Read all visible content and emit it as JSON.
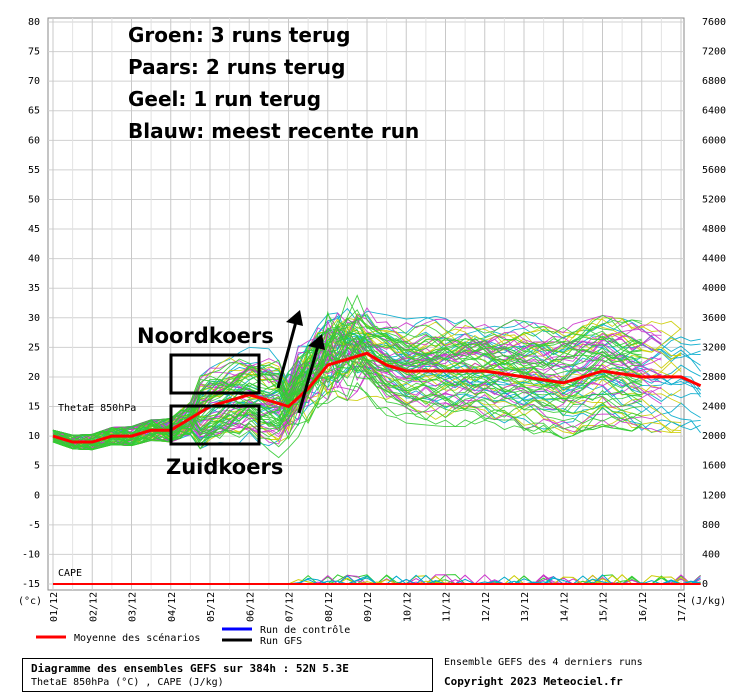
{
  "chart_data": {
    "type": "line",
    "left_axis_ticks": [
      "80",
      "75",
      "70",
      "65",
      "60",
      "55",
      "50",
      "45",
      "40",
      "35",
      "30",
      "25",
      "20",
      "15",
      "10",
      "5",
      "0",
      "-5",
      "-10",
      "-15"
    ],
    "left_axis_unit": "(°c)",
    "right_axis_ticks": [
      "7600",
      "7200",
      "6800",
      "6400",
      "6000",
      "5600",
      "5200",
      "4800",
      "4400",
      "4000",
      "3600",
      "3200",
      "2800",
      "2400",
      "2000",
      "1600",
      "1200",
      "800",
      "400",
      "0"
    ],
    "right_axis_unit": "(J/kg)",
    "ylim": [
      -15,
      80
    ],
    "y2lim": [
      0,
      7600
    ],
    "x_labels": [
      "01/12",
      "02/12",
      "03/12",
      "04/12",
      "05/12",
      "06/12",
      "07/12",
      "08/12",
      "09/12",
      "10/12",
      "11/12",
      "12/12",
      "13/12",
      "14/12",
      "15/12",
      "16/12",
      "17/12"
    ],
    "series_label_theta": "ThetaE 850hPa",
    "series_label_cape": "CAPE",
    "mean_series": {
      "name": "Moyenne des scénarios",
      "color": "#ff0000",
      "x": [
        0,
        0.5,
        1,
        1.5,
        2,
        2.5,
        3,
        3.5,
        4,
        4.5,
        5,
        5.5,
        6,
        6.5,
        7,
        7.5,
        8,
        8.5,
        9,
        10,
        11,
        12,
        13,
        14,
        15,
        16,
        16.5
      ],
      "values": [
        10,
        9,
        9,
        10,
        10,
        11,
        11,
        13,
        15,
        16,
        17,
        16,
        15,
        18,
        22,
        23,
        24,
        22,
        21,
        21,
        21,
        20,
        19,
        21,
        20,
        20,
        18.5
      ]
    },
    "ensemble_colors": {
      "green": "#33cc33",
      "purple": "#cc33cc",
      "yellow": "#cccc00",
      "blue": "#00aacc"
    },
    "legend": [
      {
        "label": "Moyenne des scénarios",
        "color": "#ff0000"
      },
      {
        "label": "Run de contrôle",
        "color": "#0000ff"
      },
      {
        "label": "Run GFS",
        "color": "#000000"
      }
    ]
  },
  "annotations": {
    "line1": "Groen: 3 runs terug",
    "line2": "Paars: 2 runs terug",
    "line3": "Geel: 1 run terug",
    "line4": "Blauw: meest recente run",
    "north": "Noordkoers",
    "south": "Zuidkoers"
  },
  "footer": {
    "title": "Diagramme des ensembles GEFS sur 384h : 52N 5.3E",
    "subtitle": "ThetaE 850hPa (°C) , CAPE (J/kg)",
    "source": "Ensemble GEFS des 4 derniers runs",
    "copyright": "Copyright 2023 Meteociel.fr"
  }
}
